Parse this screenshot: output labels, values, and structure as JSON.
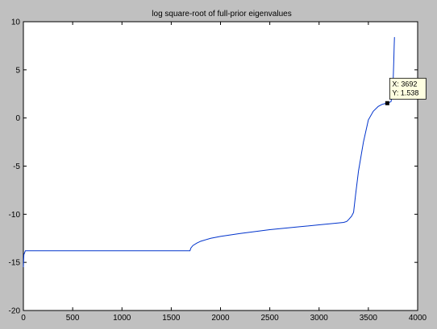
{
  "figure": {
    "background": "#c0c0c0",
    "axes_background": "#ffffff",
    "line_color": "#0033cc"
  },
  "chart_data": {
    "type": "line",
    "title": "log square-root of full-prior eigenvalues",
    "xlabel": "",
    "ylabel": "",
    "xlim": [
      0,
      4000
    ],
    "ylim": [
      -20,
      10
    ],
    "xticks": [
      "0",
      "500",
      "1000",
      "1500",
      "2000",
      "2500",
      "3000",
      "3500",
      "4000"
    ],
    "yticks": [
      "10",
      "5",
      "0",
      "-5",
      "-10",
      "-15",
      "-20"
    ],
    "grid": false,
    "series": [
      {
        "x": [
          0,
          5,
          20,
          100,
          500,
          1000,
          1500,
          1690,
          1700,
          1720,
          1760,
          1800,
          1900,
          2000,
          2200,
          2500,
          2800,
          3000,
          3200,
          3250,
          3280,
          3300,
          3330,
          3350,
          3370,
          3400,
          3450,
          3500,
          3550,
          3600,
          3640,
          3670,
          3692,
          3710,
          3730,
          3745,
          3752,
          3758,
          3762,
          3765
        ],
        "y": [
          -15.5,
          -14.2,
          -13.8,
          -13.8,
          -13.8,
          -13.8,
          -13.8,
          -13.8,
          -13.5,
          -13.25,
          -13.0,
          -12.8,
          -12.5,
          -12.3,
          -12.0,
          -11.6,
          -11.3,
          -11.1,
          -10.9,
          -10.85,
          -10.75,
          -10.55,
          -10.2,
          -9.8,
          -8.0,
          -5.5,
          -2.5,
          -0.2,
          0.7,
          1.2,
          1.42,
          1.5,
          1.538,
          1.6,
          1.7,
          2.5,
          4.0,
          6.0,
          7.5,
          8.4
        ]
      }
    ],
    "annotations": [
      {
        "type": "datatip",
        "x": 3692,
        "y": 1.538,
        "label_x": "X: 3692",
        "label_y": "Y: 1.538"
      }
    ]
  }
}
